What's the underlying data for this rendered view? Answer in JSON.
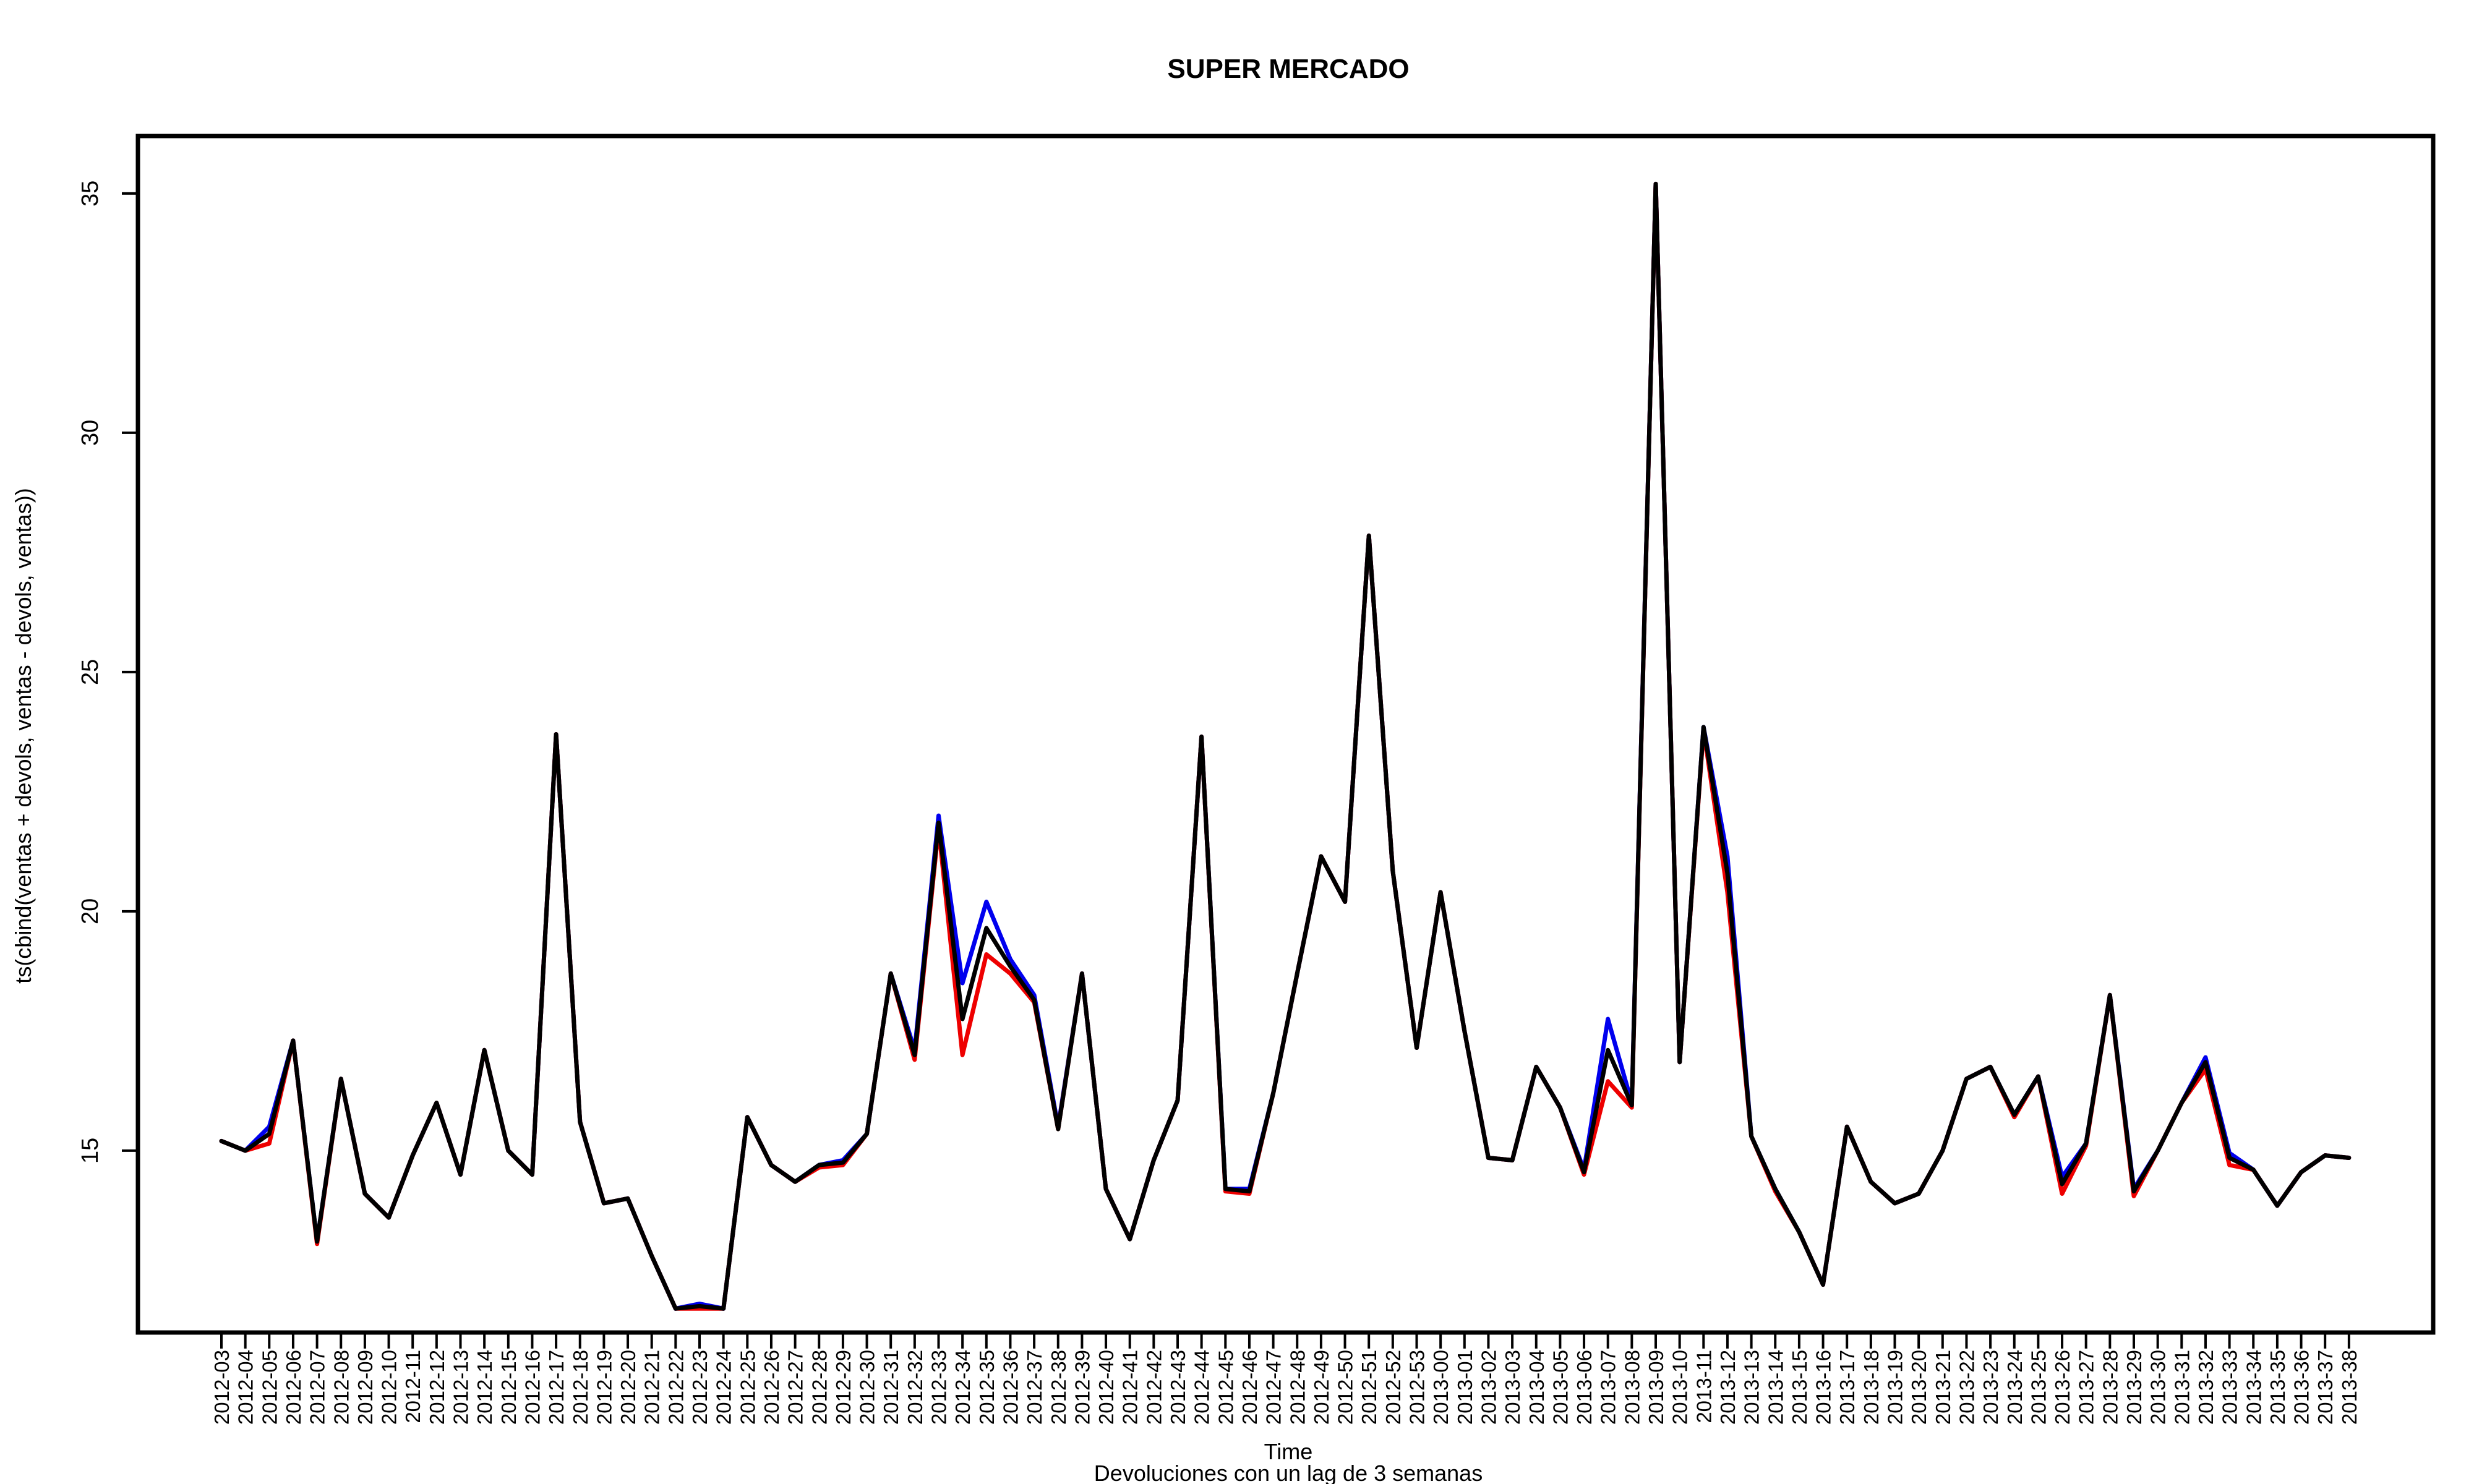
{
  "chart_data": {
    "type": "line",
    "title": "SUPER MERCADO",
    "xlabel": "Time",
    "subtitle": "Devoluciones con un lag de 3 semanas",
    "ylabel": "ts(cbind(ventas + devols, ventas - devols, ventas))",
    "ylim": [
      11.2,
      36.2
    ],
    "yticks": [
      15,
      20,
      25,
      30,
      35
    ],
    "x": [
      "2012-03",
      "2012-04",
      "2012-05",
      "2012-06",
      "2012-07",
      "2012-08",
      "2012-09",
      "2012-10",
      "2012-11",
      "2012-12",
      "2012-13",
      "2012-14",
      "2012-15",
      "2012-16",
      "2012-17",
      "2012-18",
      "2012-19",
      "2012-20",
      "2012-21",
      "2012-22",
      "2012-23",
      "2012-24",
      "2012-25",
      "2012-26",
      "2012-27",
      "2012-28",
      "2012-29",
      "2012-30",
      "2012-31",
      "2012-32",
      "2012-33",
      "2012-34",
      "2012-35",
      "2012-36",
      "2012-37",
      "2012-38",
      "2012-39",
      "2012-40",
      "2012-41",
      "2012-42",
      "2012-43",
      "2012-44",
      "2012-45",
      "2012-46",
      "2012-47",
      "2012-48",
      "2012-49",
      "2012-50",
      "2012-51",
      "2012-52",
      "2012-53",
      "2013-00",
      "2013-01",
      "2013-02",
      "2013-03",
      "2013-04",
      "2013-05",
      "2013-06",
      "2013-07",
      "2013-08",
      "2013-09",
      "2013-10",
      "2013-11",
      "2013-12",
      "2013-13",
      "2013-14",
      "2013-15",
      "2013-16",
      "2013-17",
      "2013-18",
      "2013-19",
      "2013-20",
      "2013-21",
      "2013-22",
      "2013-23",
      "2013-24",
      "2013-25",
      "2013-26",
      "2013-27",
      "2013-28",
      "2013-29",
      "2013-30",
      "2013-31",
      "2013-32",
      "2013-33",
      "2013-34",
      "2013-35",
      "2013-36",
      "2013-37",
      "2013-38"
    ],
    "series": [
      {
        "color": "#0000ee",
        "values": [
          15.2,
          15.0,
          15.5,
          17.3,
          13.1,
          16.5,
          14.1,
          13.6,
          14.9,
          16.0,
          14.5,
          17.1,
          15.0,
          14.5,
          23.7,
          15.6,
          13.9,
          14.0,
          12.8,
          11.7,
          11.8,
          11.7,
          15.7,
          14.7,
          14.35,
          14.7,
          14.8,
          15.35,
          18.7,
          17.1,
          22.0,
          18.5,
          20.2,
          19.0,
          18.25,
          15.5,
          18.7,
          14.2,
          13.15,
          14.8,
          16.05,
          23.65,
          14.2,
          14.2,
          16.2,
          18.7,
          21.15,
          20.2,
          27.85,
          20.85,
          17.15,
          20.4,
          17.5,
          14.85,
          14.8,
          16.75,
          15.9,
          14.6,
          17.75,
          16.0,
          35.2,
          16.85,
          23.85,
          21.15,
          15.3,
          14.2,
          13.3,
          12.2,
          15.5,
          14.35,
          13.9,
          14.1,
          15.0,
          16.5,
          16.75,
          15.75,
          16.55,
          14.45,
          15.15,
          18.25,
          14.2,
          15.0,
          16.0,
          16.95,
          14.95,
          14.6,
          13.85,
          14.55,
          14.9,
          14.85
        ]
      },
      {
        "color": "#ee0000",
        "values": [
          15.2,
          15.0,
          15.15,
          17.3,
          13.05,
          16.5,
          14.1,
          13.6,
          14.9,
          16.0,
          14.5,
          17.1,
          15.0,
          14.5,
          23.7,
          15.6,
          13.9,
          14.0,
          12.8,
          11.7,
          11.7,
          11.7,
          15.7,
          14.7,
          14.35,
          14.65,
          14.7,
          15.35,
          18.7,
          16.9,
          21.75,
          17.0,
          19.1,
          18.7,
          18.1,
          15.45,
          18.7,
          14.2,
          13.15,
          14.8,
          16.05,
          23.65,
          14.15,
          14.1,
          16.2,
          18.7,
          21.15,
          20.2,
          27.85,
          20.85,
          17.15,
          20.4,
          17.5,
          14.85,
          14.8,
          16.75,
          15.9,
          14.5,
          16.45,
          15.9,
          35.2,
          16.85,
          23.8,
          20.4,
          15.3,
          14.15,
          13.3,
          12.2,
          15.5,
          14.35,
          13.9,
          14.1,
          15.0,
          16.5,
          16.75,
          15.7,
          16.55,
          14.1,
          15.1,
          18.25,
          14.05,
          15.0,
          16.0,
          16.7,
          14.7,
          14.6,
          13.85,
          14.55,
          14.9,
          14.85
        ]
      },
      {
        "color": "#000000",
        "values": [
          15.2,
          15.0,
          15.35,
          17.3,
          13.1,
          16.5,
          14.1,
          13.6,
          14.9,
          16.0,
          14.5,
          17.1,
          15.0,
          14.5,
          23.7,
          15.6,
          13.9,
          14.0,
          12.8,
          11.7,
          11.75,
          11.7,
          15.7,
          14.7,
          14.35,
          14.7,
          14.75,
          15.35,
          18.7,
          17.0,
          21.85,
          17.75,
          19.65,
          18.85,
          18.15,
          15.45,
          18.7,
          14.2,
          13.15,
          14.8,
          16.05,
          23.65,
          14.2,
          14.15,
          16.2,
          18.7,
          21.15,
          20.2,
          27.85,
          20.85,
          17.15,
          20.4,
          17.5,
          14.85,
          14.8,
          16.75,
          15.9,
          14.55,
          17.1,
          15.95,
          35.2,
          16.85,
          23.85,
          20.8,
          15.3,
          14.2,
          13.3,
          12.2,
          15.5,
          14.35,
          13.9,
          14.1,
          15.0,
          16.5,
          16.75,
          15.75,
          16.55,
          14.3,
          15.15,
          18.25,
          14.15,
          15.0,
          16.0,
          16.85,
          14.85,
          14.6,
          13.85,
          14.55,
          14.9,
          14.85
        ]
      }
    ]
  }
}
